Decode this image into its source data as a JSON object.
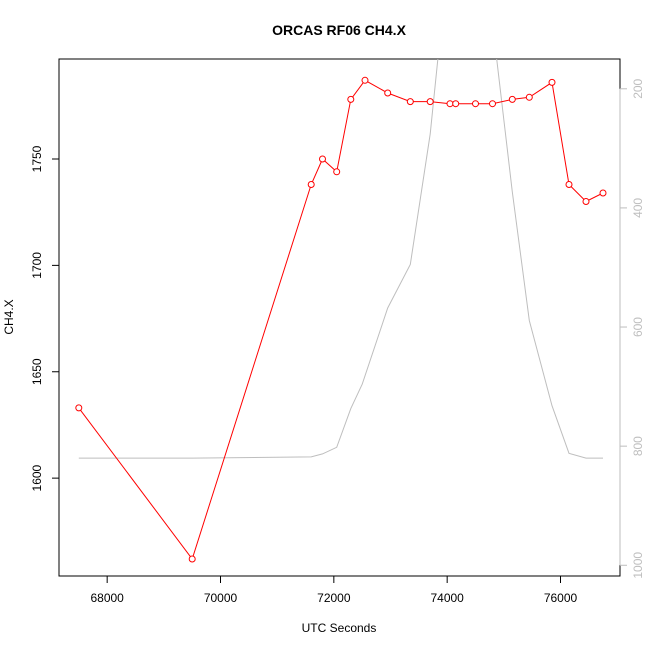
{
  "chart_data": {
    "type": "line",
    "title": "ORCAS RF06 CH4.X",
    "xlabel": "UTC Seconds",
    "ylabel": "CH4.X",
    "xlim": [
      67150,
      77050
    ],
    "ylim": [
      1554,
      1797
    ],
    "x_ticks": [
      68000,
      70000,
      72000,
      74000,
      76000
    ],
    "y_ticks": [
      1600,
      1650,
      1700,
      1750
    ],
    "grid": false,
    "colors": {
      "main": "#ff0000",
      "secondary": "#bebebe",
      "axis": "#000000"
    },
    "series": [
      {
        "axis": "left",
        "marker": "open-circle",
        "x": [
          67500,
          69500,
          71600,
          71800,
          72050,
          72300,
          72550,
          72950,
          73350,
          73700,
          74050,
          74150,
          74500,
          74800,
          75150,
          75450,
          75850,
          76150,
          76450,
          76750
        ],
        "y": [
          1633,
          1562,
          1738,
          1750,
          1744,
          1778,
          1787,
          1781,
          1777,
          1777,
          1776,
          1776,
          1776,
          1776,
          1778,
          1779,
          1786,
          1738,
          1730,
          1734
        ]
      },
      {
        "axis": "right",
        "marker": "none",
        "x": [
          67500,
          69500,
          71600,
          71800,
          72050,
          72300,
          72500,
          72950,
          73350,
          73700,
          73900,
          74800,
          75150,
          75450,
          75850,
          76150,
          76450,
          76750
        ],
        "y": [
          820,
          820,
          818,
          813,
          802,
          737,
          696,
          568,
          495,
          276,
          90,
          90,
          373,
          589,
          732,
          812,
          820,
          820
        ]
      }
    ],
    "right_axis": {
      "ticks": [
        200,
        400,
        600,
        800,
        1000
      ],
      "ylim": [
        1018,
        150
      ],
      "inverted": true
    }
  }
}
